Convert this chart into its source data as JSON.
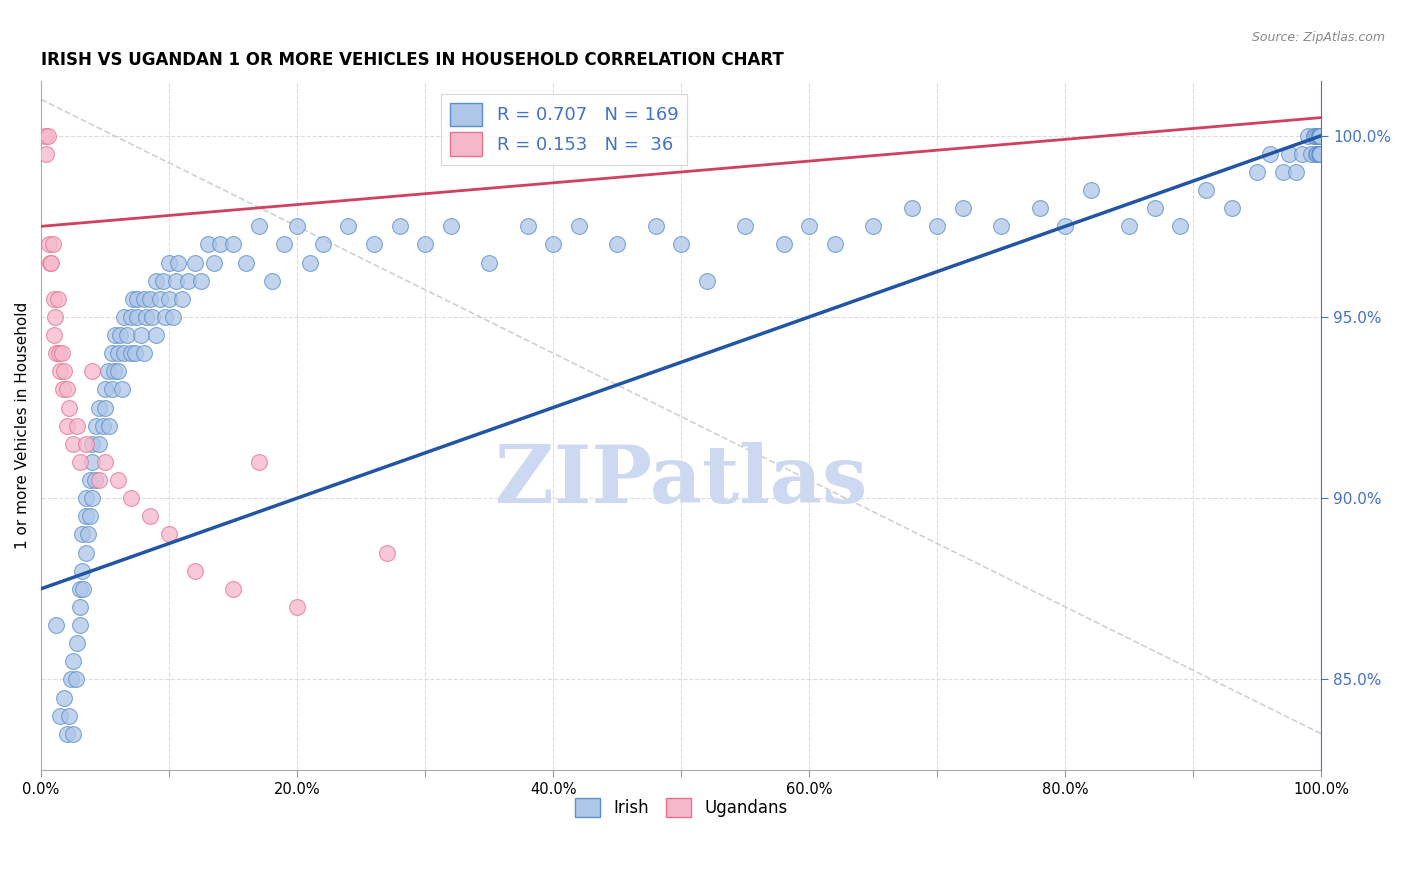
{
  "title": "IRISH VS UGANDAN 1 OR MORE VEHICLES IN HOUSEHOLD CORRELATION CHART",
  "source": "Source: ZipAtlas.com",
  "ylabel": "1 or more Vehicles in Household",
  "legend_irish_R": "0.707",
  "legend_irish_N": "169",
  "legend_ugandan_R": "0.153",
  "legend_ugandan_N": " 36",
  "irish_color": "#aec6e8",
  "ugandan_color": "#f5b8cb",
  "irish_edge_color": "#5b8fc9",
  "ugandan_edge_color": "#e8728e",
  "irish_line_color": "#2255a4",
  "ugandan_line_color": "#d04060",
  "ref_line_color": "#cccccc",
  "xmin": 0.0,
  "xmax": 100.0,
  "ymin": 82.5,
  "ymax": 101.5,
  "yticks": [
    85.0,
    90.0,
    95.0,
    100.0
  ],
  "xtick_vals": [
    0,
    10,
    20,
    30,
    40,
    50,
    60,
    70,
    80,
    90,
    100
  ],
  "xtick_labels": [
    "0.0%",
    "",
    "20.0%",
    "",
    "40.0%",
    "",
    "60.0%",
    "",
    "80.0%",
    "",
    "100.0%"
  ],
  "watermark_color": "#ccd9f0",
  "background_color": "#ffffff",
  "grid_color": "#dddddd",
  "irish_trend_x0": 0,
  "irish_trend_x1": 100,
  "irish_trend_y0": 87.5,
  "irish_trend_y1": 100.0,
  "ugandan_trend_x0": 0,
  "ugandan_trend_x1": 100,
  "ugandan_trend_y0": 97.5,
  "ugandan_trend_y1": 100.5,
  "ref_line_x0": 0,
  "ref_line_x1": 100,
  "ref_line_y0": 101.0,
  "ref_line_y1": 83.5,
  "irish_x": [
    1.2,
    1.5,
    1.8,
    2.0,
    2.2,
    2.3,
    2.5,
    2.5,
    2.7,
    2.8,
    3.0,
    3.0,
    3.0,
    3.2,
    3.2,
    3.3,
    3.5,
    3.5,
    3.5,
    3.7,
    3.8,
    3.8,
    4.0,
    4.0,
    4.0,
    4.2,
    4.3,
    4.5,
    4.5,
    4.8,
    5.0,
    5.0,
    5.2,
    5.3,
    5.5,
    5.5,
    5.7,
    5.8,
    6.0,
    6.0,
    6.2,
    6.3,
    6.5,
    6.5,
    6.7,
    7.0,
    7.0,
    7.2,
    7.3,
    7.5,
    7.5,
    7.8,
    8.0,
    8.0,
    8.2,
    8.5,
    8.7,
    9.0,
    9.0,
    9.3,
    9.5,
    9.7,
    10.0,
    10.0,
    10.3,
    10.5,
    10.7,
    11.0,
    11.5,
    12.0,
    12.5,
    13.0,
    13.5,
    14.0,
    15.0,
    16.0,
    17.0,
    18.0,
    19.0,
    20.0,
    21.0,
    22.0,
    24.0,
    26.0,
    28.0,
    30.0,
    32.0,
    35.0,
    38.0,
    40.0,
    42.0,
    45.0,
    48.0,
    50.0,
    52.0,
    55.0,
    58.0,
    60.0,
    62.0,
    65.0,
    68.0,
    70.0,
    72.0,
    75.0,
    78.0,
    80.0,
    82.0,
    85.0,
    87.0,
    89.0,
    91.0,
    93.0,
    95.0,
    96.0,
    97.0,
    97.5,
    98.0,
    98.5,
    99.0,
    99.2,
    99.4,
    99.5,
    99.6,
    99.7,
    99.7,
    99.8,
    99.8,
    99.8,
    99.9,
    99.9,
    99.9,
    99.9,
    99.9,
    99.9,
    99.9,
    99.9,
    99.9,
    99.9,
    99.9,
    99.9,
    99.9,
    99.9,
    99.9,
    99.9,
    99.9,
    99.9,
    99.9,
    99.9,
    99.9,
    99.9,
    99.9,
    99.9,
    99.9,
    99.9,
    99.9,
    99.9,
    99.9,
    99.9,
    99.9,
    99.9,
    99.9,
    99.9,
    99.9,
    99.9,
    99.9,
    99.9,
    99.9,
    99.9,
    99.9,
    99.9,
    99.9,
    99.9,
    99.9,
    99.9,
    99.9,
    99.9,
    99.9,
    99.9
  ],
  "irish_y": [
    86.5,
    84.0,
    84.5,
    83.5,
    84.0,
    85.0,
    83.5,
    85.5,
    85.0,
    86.0,
    86.5,
    87.0,
    87.5,
    88.0,
    89.0,
    87.5,
    88.5,
    89.5,
    90.0,
    89.0,
    89.5,
    90.5,
    90.0,
    91.0,
    91.5,
    90.5,
    92.0,
    91.5,
    92.5,
    92.0,
    93.0,
    92.5,
    93.5,
    92.0,
    93.0,
    94.0,
    93.5,
    94.5,
    93.5,
    94.0,
    94.5,
    93.0,
    94.0,
    95.0,
    94.5,
    95.0,
    94.0,
    95.5,
    94.0,
    95.0,
    95.5,
    94.5,
    95.5,
    94.0,
    95.0,
    95.5,
    95.0,
    96.0,
    94.5,
    95.5,
    96.0,
    95.0,
    95.5,
    96.5,
    95.0,
    96.0,
    96.5,
    95.5,
    96.0,
    96.5,
    96.0,
    97.0,
    96.5,
    97.0,
    97.0,
    96.5,
    97.5,
    96.0,
    97.0,
    97.5,
    96.5,
    97.0,
    97.5,
    97.0,
    97.5,
    97.0,
    97.5,
    96.5,
    97.5,
    97.0,
    97.5,
    97.0,
    97.5,
    97.0,
    96.0,
    97.5,
    97.0,
    97.5,
    97.0,
    97.5,
    98.0,
    97.5,
    98.0,
    97.5,
    98.0,
    97.5,
    98.5,
    97.5,
    98.0,
    97.5,
    98.5,
    98.0,
    99.0,
    99.5,
    99.0,
    99.5,
    99.0,
    99.5,
    100.0,
    99.5,
    100.0,
    100.0,
    99.5,
    100.0,
    99.5,
    100.0,
    99.5,
    100.0,
    99.5,
    100.0,
    99.5,
    100.0,
    99.5,
    100.0,
    99.5,
    100.0,
    99.5,
    100.0,
    99.5,
    100.0,
    99.5,
    100.0,
    99.5,
    100.0,
    99.5,
    100.0,
    99.5,
    100.0,
    99.5,
    100.0,
    99.5,
    100.0,
    99.5,
    100.0,
    99.5,
    100.0,
    99.5,
    100.0,
    99.5,
    100.0,
    99.5,
    100.0,
    99.5,
    100.0,
    99.5,
    100.0,
    99.5,
    100.0,
    99.5,
    100.0,
    99.5,
    100.0,
    99.5,
    100.0,
    99.5,
    100.0,
    99.5,
    100.0
  ],
  "ugandan_x": [
    0.3,
    0.4,
    0.5,
    0.6,
    0.7,
    0.8,
    0.9,
    1.0,
    1.0,
    1.1,
    1.2,
    1.3,
    1.4,
    1.5,
    1.6,
    1.7,
    1.8,
    2.0,
    2.0,
    2.2,
    2.5,
    2.8,
    3.0,
    3.5,
    4.0,
    4.5,
    5.0,
    6.0,
    7.0,
    8.5,
    10.0,
    12.0,
    15.0,
    17.0,
    20.0,
    27.0
  ],
  "ugandan_y": [
    100.0,
    99.5,
    100.0,
    97.0,
    96.5,
    96.5,
    97.0,
    95.5,
    94.5,
    95.0,
    94.0,
    95.5,
    94.0,
    93.5,
    94.0,
    93.0,
    93.5,
    92.0,
    93.0,
    92.5,
    91.5,
    92.0,
    91.0,
    91.5,
    93.5,
    90.5,
    91.0,
    90.5,
    90.0,
    89.5,
    89.0,
    88.0,
    87.5,
    91.0,
    87.0,
    88.5
  ]
}
